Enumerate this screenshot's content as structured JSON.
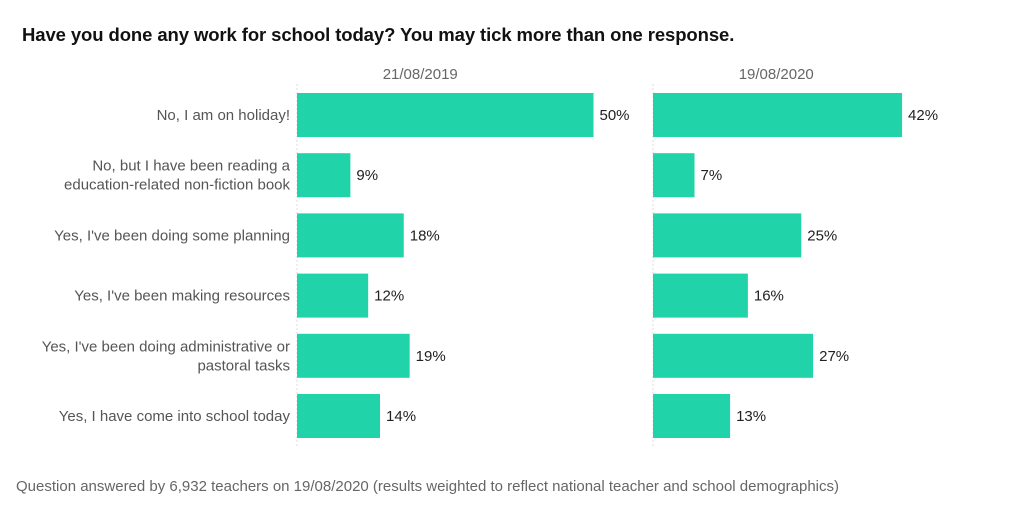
{
  "chart_data": {
    "type": "bar",
    "orientation": "horizontal",
    "title": "Have you done any work for school today? You may tick more than one response.",
    "footnote": "Question answered by 6,932 teachers on 19/08/2020 (results weighted to reflect national teacher and school demographics)",
    "categories": [
      [
        "No, I am on holiday!"
      ],
      [
        "No, but I have been reading a",
        "education-related non-fiction book"
      ],
      [
        "Yes, I've been doing some planning"
      ],
      [
        "Yes, I've been making resources"
      ],
      [
        "Yes, I've been doing administrative or",
        "pastoral tasks"
      ],
      [
        "Yes, I have come into school today"
      ]
    ],
    "series": [
      {
        "name": "21/08/2019",
        "values": [
          50,
          9,
          18,
          12,
          19,
          14
        ]
      },
      {
        "name": "19/08/2020",
        "values": [
          42,
          7,
          25,
          16,
          27,
          13
        ]
      }
    ],
    "value_suffix": "%",
    "xlim": [
      0,
      50
    ],
    "grid": false,
    "legend": "none",
    "bar_color": "#21d3a8"
  }
}
